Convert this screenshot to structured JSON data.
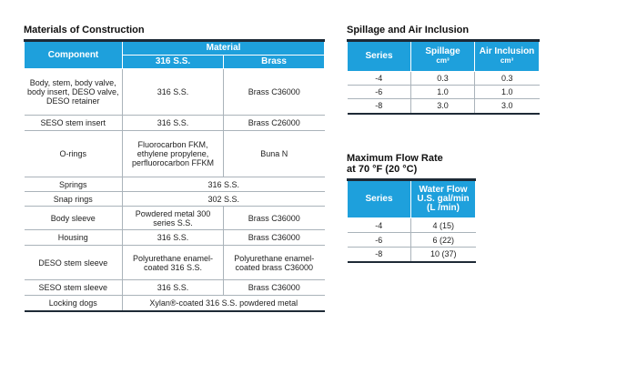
{
  "materials": {
    "title": "Materials of Construction",
    "header": {
      "component": "Component",
      "material": "Material",
      "col1": "316 S.S.",
      "col2": "Brass"
    },
    "rows": [
      {
        "component": "Body, stem, body valve, body insert, DESO valve, DESO retainer",
        "ss": "316 S.S.",
        "brass": "Brass C36000"
      },
      {
        "component": "SESO stem insert",
        "ss": "316 S.S.",
        "brass": "Brass C26000"
      },
      {
        "component": "O-rings",
        "ss": "Fluorocarbon FKM, ethylene propylene, perfluorocarbon FFKM",
        "brass": "Buna N"
      },
      {
        "component": "Springs",
        "both": "316 S.S."
      },
      {
        "component": "Snap rings",
        "both": "302 S.S."
      },
      {
        "component": "Body sleeve",
        "ss": "Powdered metal 300 series S.S.",
        "brass": "Brass C36000"
      },
      {
        "component": "Housing",
        "ss": "316 S.S.",
        "brass": "Brass C36000"
      },
      {
        "component": "DESO stem sleeve",
        "ss": "Polyurethane enamel-coated 316 S.S.",
        "brass": "Polyurethane enamel-coated brass C36000"
      },
      {
        "component": "SESO stem sleeve",
        "ss": "316 S.S.",
        "brass": "Brass C36000"
      },
      {
        "component": "Locking dogs",
        "both": "Xylan®-coated 316 S.S. powdered metal"
      }
    ]
  },
  "spillage": {
    "title": "Spillage and Air Inclusion",
    "header": {
      "series": "Series",
      "spillage": "Spillage",
      "spillage_unit": "cm³",
      "air": "Air Inclusion",
      "air_unit": "cm³"
    },
    "rows": [
      {
        "series": "-4",
        "spillage": "0.3",
        "air": "0.3"
      },
      {
        "series": "-6",
        "spillage": "1.0",
        "air": "1.0"
      },
      {
        "series": "-8",
        "spillage": "3.0",
        "air": "3.0"
      }
    ]
  },
  "flow": {
    "title_line1": "Maximum Flow Rate",
    "title_line2": "at 70 °F (20 °C)",
    "header": {
      "series": "Series",
      "water1": "Water Flow",
      "water2": "U.S. gal/min",
      "water3": "(L /min)"
    },
    "rows": [
      {
        "series": "-4",
        "value": "4 (15)"
      },
      {
        "series": "-6",
        "value": "6 (22)"
      },
      {
        "series": "-8",
        "value": "10 (37)"
      }
    ]
  }
}
